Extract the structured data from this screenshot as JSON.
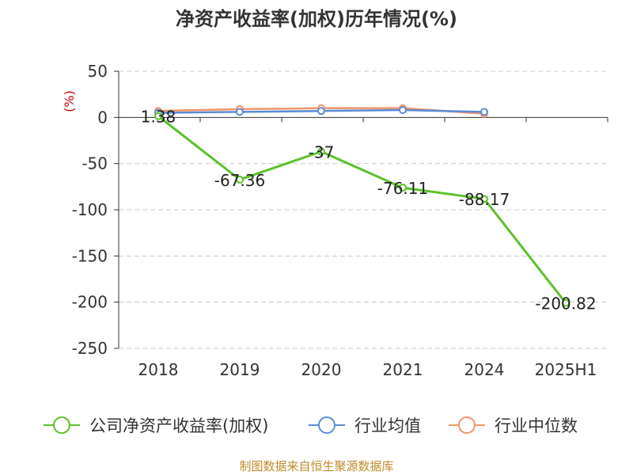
{
  "chart_data": {
    "type": "line",
    "title": "净资产收益率(加权)历年情况(%)",
    "unit_label": "(%)",
    "categories": [
      "2018",
      "2019",
      "2020",
      "2021",
      "2024",
      "2025H1"
    ],
    "ylim": [
      -250,
      50
    ],
    "yticks": [
      50,
      0,
      -50,
      -100,
      -150,
      -200,
      -250
    ],
    "ytick_labels": [
      "50",
      "0",
      "-50",
      "-100",
      "-150",
      "-200",
      "-250"
    ],
    "grid": true,
    "legend_position": "bottom",
    "series": [
      {
        "name": "公司净资产收益率(加权)",
        "color": "#5cc12a",
        "values": [
          1.38,
          -67.36,
          -37,
          -76.11,
          -88.17,
          -200.82
        ],
        "labels": [
          "1.38",
          "-67.36",
          "-37",
          "-76.11",
          "-88.17",
          "-200.82"
        ],
        "show_labels": true
      },
      {
        "name": "行业均值",
        "color": "#5b8bd6",
        "values": [
          5,
          6,
          7,
          8,
          6,
          null
        ],
        "show_labels": false
      },
      {
        "name": "行业中位数",
        "color": "#f0956b",
        "values": [
          7,
          9,
          10,
          10,
          4,
          null
        ],
        "show_labels": false
      }
    ]
  },
  "source_note": "制图数据来自恒生聚源数据库"
}
